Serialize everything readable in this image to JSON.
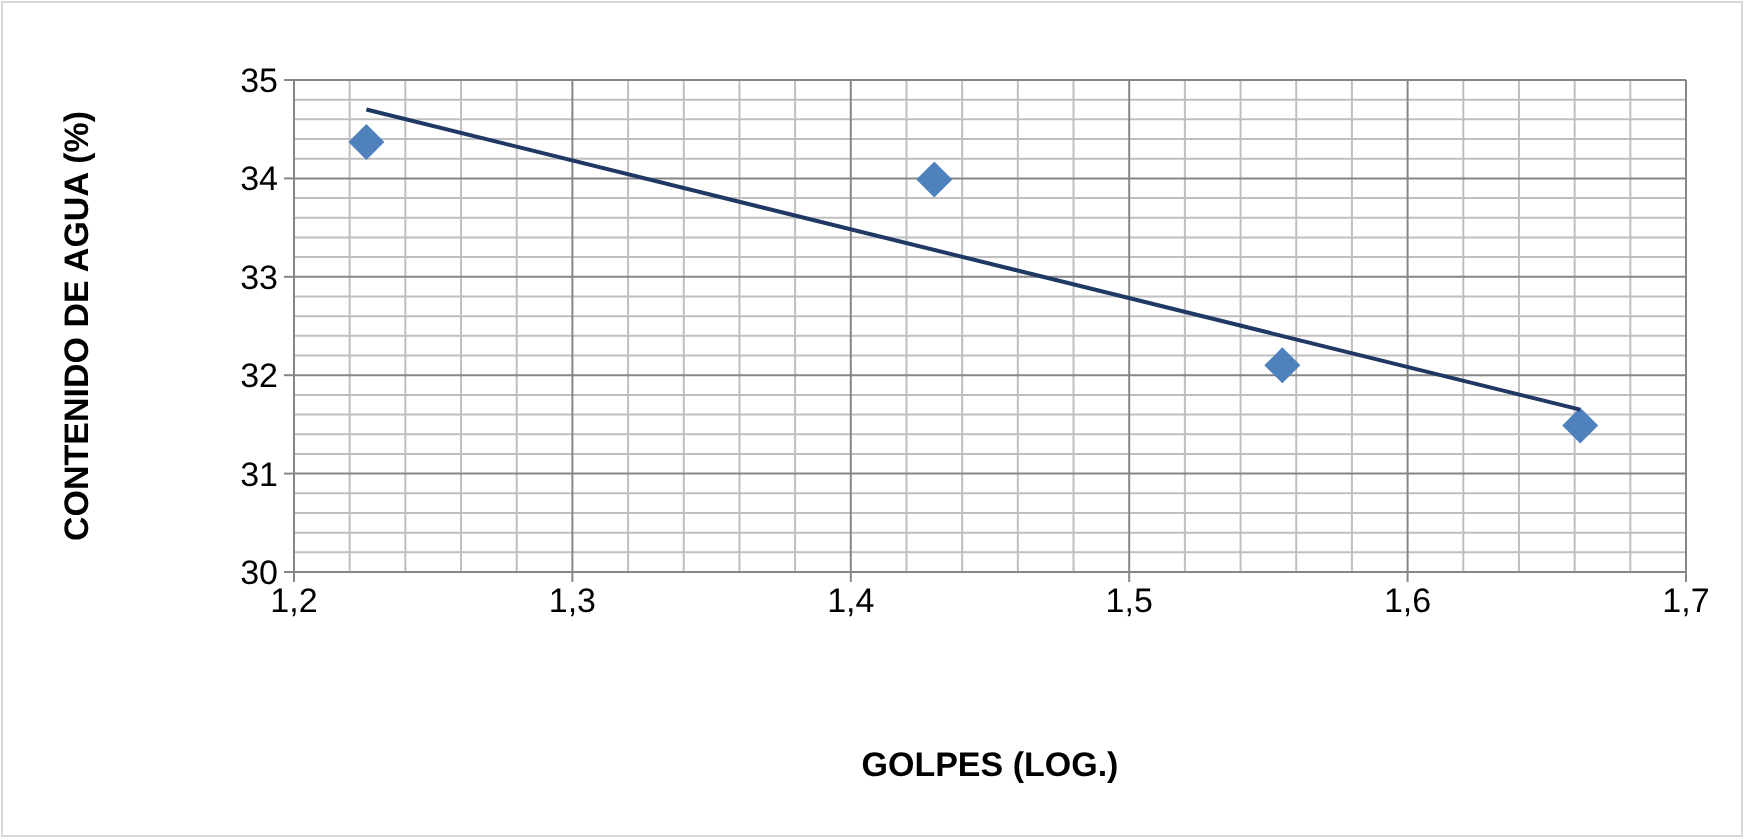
{
  "chart_data": {
    "type": "scatter",
    "xlabel": "GOLPES (LOG.)",
    "ylabel": "CONTENIDO DE AGUA (%)",
    "xlim": [
      1.2,
      1.7
    ],
    "xticks": [
      {
        "value": 1.2,
        "label": "1,2"
      },
      {
        "value": 1.3,
        "label": "1,3"
      },
      {
        "value": 1.4,
        "label": "1,4"
      },
      {
        "value": 1.5,
        "label": "1,5"
      },
      {
        "value": 1.6,
        "label": "1,6"
      },
      {
        "value": 1.7,
        "label": "1,7"
      }
    ],
    "ylim": [
      30,
      35
    ],
    "yticks": [
      30,
      31,
      32,
      33,
      34,
      35
    ],
    "grid": true,
    "series": [
      {
        "color": "#4f81bd",
        "marker": "diamond",
        "x": [
          1.226,
          1.43,
          1.555,
          1.662
        ],
        "values": [
          34.37,
          33.99,
          32.1,
          31.49
        ]
      },
      {
        "type": "line",
        "color": "#1f3864",
        "marker": "none",
        "x": [
          1.226,
          1.662
        ],
        "values": [
          34.7,
          31.65
        ]
      }
    ]
  }
}
